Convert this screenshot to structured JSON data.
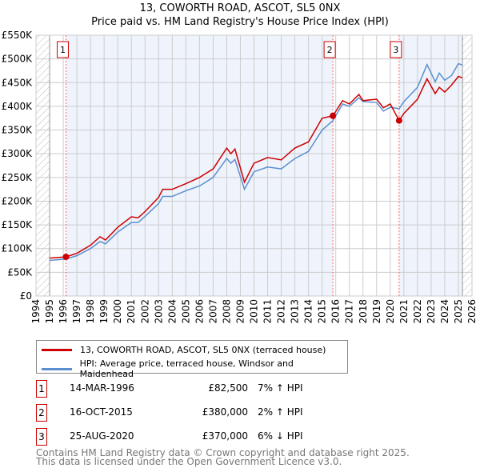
{
  "title": "13, COWORTH ROAD, ASCOT, SL5 0NX",
  "subtitle": "Price paid vs. HM Land Registry's House Price Index (HPI)",
  "chart_data": {
    "type": "line",
    "xlim": [
      1994,
      2026
    ],
    "ylim": [
      0,
      550000
    ],
    "y_ticks": [
      0,
      50000,
      100000,
      150000,
      200000,
      250000,
      300000,
      350000,
      400000,
      450000,
      500000,
      550000
    ],
    "y_tick_labels": [
      "£0",
      "£50K",
      "£100K",
      "£150K",
      "£200K",
      "£250K",
      "£300K",
      "£350K",
      "£400K",
      "£450K",
      "£500K",
      "£550K"
    ],
    "x_ticks": [
      "1994",
      "1995",
      "1996",
      "1997",
      "1998",
      "1999",
      "2000",
      "2001",
      "2002",
      "2003",
      "2004",
      "2005",
      "2006",
      "2007",
      "2008",
      "2009",
      "2010",
      "2011",
      "2012",
      "2013",
      "2014",
      "2015",
      "2016",
      "2017",
      "2018",
      "2019",
      "2020",
      "2021",
      "2022",
      "2023",
      "2024",
      "2025",
      "2026"
    ],
    "grid": true,
    "series": [
      {
        "name": "13, COWORTH ROAD, ASCOT, SL5 0NX (terraced house)",
        "color": "#cc0000",
        "x": [
          1995,
          1996.2,
          1997,
          1998,
          1998.7,
          1999.1,
          2000,
          2001,
          2001.5,
          2002,
          2003,
          2003.3,
          2004,
          2005,
          2006,
          2007,
          2008,
          2008.3,
          2008.6,
          2009.3,
          2010,
          2011,
          2012,
          2013,
          2014,
          2015,
          2015.8,
          2016.5,
          2017,
          2017.7,
          2018,
          2019,
          2019.5,
          2020,
          2020.65,
          2021,
          2022,
          2022.7,
          2023.3,
          2023.6,
          2024,
          2024.5,
          2025,
          2025.3
        ],
        "y": [
          80000,
          82500,
          90000,
          107000,
          125000,
          118000,
          145000,
          167000,
          165000,
          178000,
          208000,
          225000,
          225000,
          237000,
          250000,
          268000,
          312000,
          300000,
          310000,
          240000,
          280000,
          292000,
          287000,
          312000,
          325000,
          375000,
          380000,
          412000,
          405000,
          425000,
          412000,
          415000,
          397000,
          405000,
          370000,
          385000,
          415000,
          458000,
          427000,
          440000,
          430000,
          445000,
          463000,
          460000
        ]
      },
      {
        "name": "HPI: Average price, terraced house, Windsor and Maidenhead",
        "color": "#5b8fd0",
        "x": [
          1995,
          1996.2,
          1997,
          1998,
          1998.7,
          1999.1,
          2000,
          2001,
          2001.5,
          2002,
          2003,
          2003.3,
          2004,
          2005,
          2006,
          2007,
          2008,
          2008.3,
          2008.6,
          2009.3,
          2010,
          2011,
          2012,
          2013,
          2014,
          2015,
          2015.8,
          2016.5,
          2017,
          2017.7,
          2018,
          2019,
          2019.5,
          2020,
          2020.65,
          2021,
          2022,
          2022.7,
          2023.3,
          2023.6,
          2024,
          2024.5,
          2025,
          2025.3
        ],
        "y": [
          75000,
          78000,
          85000,
          100000,
          115000,
          110000,
          135000,
          155000,
          155000,
          168000,
          195000,
          210000,
          210000,
          222000,
          232000,
          250000,
          290000,
          280000,
          288000,
          225000,
          262000,
          272000,
          268000,
          290000,
          305000,
          350000,
          370000,
          405000,
          400000,
          418000,
          410000,
          408000,
          390000,
          398000,
          395000,
          410000,
          440000,
          488000,
          452000,
          470000,
          455000,
          465000,
          490000,
          487000
        ]
      }
    ],
    "sales": [
      {
        "label": "1",
        "x": 1996.2,
        "y": 82500
      },
      {
        "label": "2",
        "x": 2015.79,
        "y": 380000
      },
      {
        "label": "3",
        "x": 2020.65,
        "y": 370000
      }
    ]
  },
  "legend": {
    "property": "13, COWORTH ROAD, ASCOT, SL5 0NX (terraced house)",
    "hpi": "HPI: Average price, terraced house, Windsor and Maidenhead"
  },
  "transactions": [
    {
      "num": "1",
      "date": "14-MAR-1996",
      "price": "£82,500",
      "hpi": "7% ↑ HPI"
    },
    {
      "num": "2",
      "date": "16-OCT-2015",
      "price": "£380,000",
      "hpi": "2% ↑ HPI"
    },
    {
      "num": "3",
      "date": "25-AUG-2020",
      "price": "£370,000",
      "hpi": "6% ↓ HPI"
    }
  ],
  "footer": {
    "line1": "Contains HM Land Registry data © Crown copyright and database right 2025.",
    "line2": "This data is licensed under the Open Government Licence v3.0."
  }
}
